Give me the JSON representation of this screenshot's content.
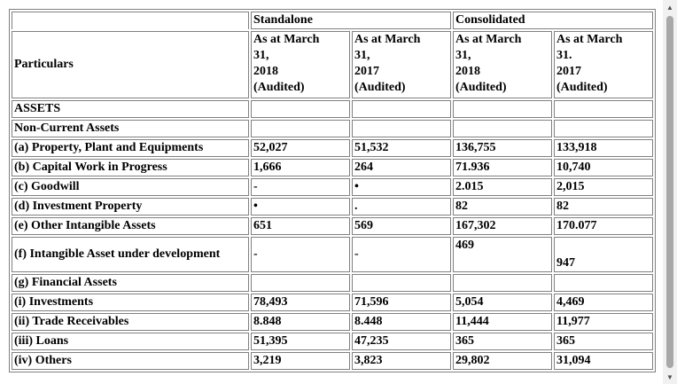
{
  "table": {
    "group_headers": {
      "standalone": "Standalone",
      "consolidated": "Consolidated"
    },
    "particulars_label": "Particulars",
    "period_headers": [
      "As at March\n31,\n2018\n(Audited)",
      "As at March\n31,\n2017\n(Audited)",
      "As at March\n31,\n2018\n(Audited)",
      "As at March\n31.\n2017\n(Audited)"
    ],
    "rows": [
      {
        "label": "ASSETS",
        "values": [
          "",
          "",
          "",
          ""
        ]
      },
      {
        "label": "Non-Current Assets",
        "values": [
          "",
          "",
          "",
          ""
        ]
      },
      {
        "label": "(a) Property, Plant and Equipments",
        "values": [
          "52,027",
          "51,532",
          "136,755",
          "133,918"
        ]
      },
      {
        "label": "(b) Capital Work in Progress",
        "values": [
          "1,666",
          "264",
          "71.936",
          "10,740"
        ]
      },
      {
        "label": "(c) Goodwill",
        "values": [
          "-",
          "•",
          "2.015",
          "2,015"
        ]
      },
      {
        "label": "(d) Investment Property",
        "values": [
          "•",
          ".",
          "82",
          "82"
        ]
      },
      {
        "label": "(e) Other Intangible Assets",
        "values": [
          "651",
          "569",
          "167,302",
          "170.077"
        ]
      },
      {
        "label": "(f) Intangible Asset under development",
        "values": [
          "-",
          "-",
          "469",
          "947"
        ]
      },
      {
        "label": "(g) Financial Assets",
        "values": [
          "",
          "",
          "",
          ""
        ]
      },
      {
        "label": "(i) Investments",
        "values": [
          "78,493",
          "71,596",
          "5,054",
          "4,469"
        ]
      },
      {
        "label": "(ii) Trade Receivables",
        "values": [
          "8.848",
          "8.448",
          "11,444",
          "11,977"
        ]
      },
      {
        "label": "(iii) Loans",
        "values": [
          "51,395",
          "47,235",
          "365",
          "365"
        ]
      },
      {
        "label": "(iv) Others",
        "values": [
          "3,219",
          "3,823",
          "29,802",
          "31,094"
        ]
      }
    ]
  },
  "scrollbar": {
    "up_icon": "▲",
    "down_icon": "▼",
    "position": 0
  }
}
